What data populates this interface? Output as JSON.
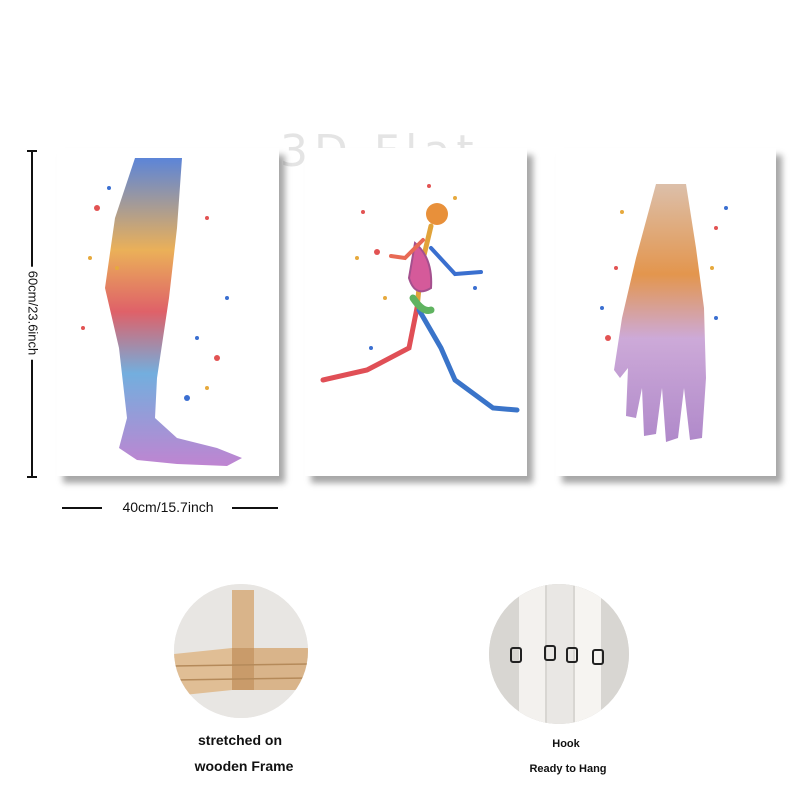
{
  "watermark": "3D Flat",
  "dimensions": {
    "height_label": "60cm/23.6inch",
    "width_label": "40cm/15.7inch"
  },
  "panels": [
    {
      "subject": "leg-anatomy-artwork"
    },
    {
      "subject": "running-skeleton-artwork"
    },
    {
      "subject": "foot-bones-artwork"
    }
  ],
  "features": {
    "frame": {
      "line1": "stretched on",
      "line2": "wooden Frame"
    },
    "hook": {
      "line1": "Hook",
      "line2": "Ready to Hang"
    }
  }
}
